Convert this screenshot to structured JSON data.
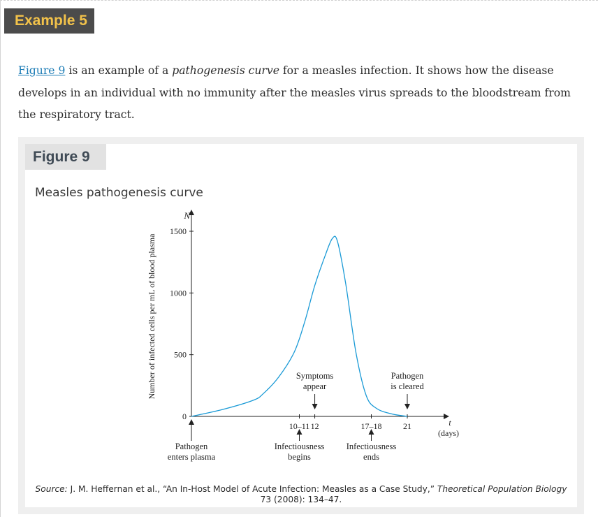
{
  "example_label": "Example 5",
  "intro": {
    "link_text": "Figure 9",
    "text_1": " is an example of a ",
    "emph": "pathogenesis curve",
    "text_2": " for a measles infection. It shows how the disease develops in an individual with no immunity after the measles virus spreads to the bloodstream from the respiratory tract."
  },
  "figure": {
    "label": "Figure 9",
    "caption": "Measles pathogenesis curve",
    "source": {
      "prefix": "Source:",
      "text_1": " J. M. Heffernan et al., “An In-Host Model of Acute Infection: Measles as a Case Study,” ",
      "journal": "Theoretical Population Biology",
      "text_2": " 73 (2008): 134–47."
    }
  },
  "colors": {
    "curve": "#1a9ad6",
    "axis": "#222222",
    "tab_dark": "#4b4b4b",
    "tab_accent": "#f2c24a",
    "link": "#1a7bb5"
  },
  "chart_data": {
    "type": "line",
    "ylabel": "Number of infected cells per mL of blood plasma",
    "y_axis_letter": "N",
    "x_axis_letter": "t",
    "x_unit": "(days)",
    "ylim": [
      0,
      1500
    ],
    "y_ticks": [
      {
        "value": 0,
        "label": "0"
      },
      {
        "value": 500,
        "label": "500"
      },
      {
        "value": 1000,
        "label": "1000"
      },
      {
        "value": 1500,
        "label": "1500"
      }
    ],
    "x_ticks": [
      {
        "value": 10.5,
        "label": "10–11"
      },
      {
        "value": 12,
        "label": "12"
      },
      {
        "value": 17.5,
        "label": "17–18"
      },
      {
        "value": 21,
        "label": "21"
      }
    ],
    "points": [
      {
        "x": 0,
        "y": 0
      },
      {
        "x": 3,
        "y": 55
      },
      {
        "x": 6,
        "y": 130
      },
      {
        "x": 7,
        "y": 185
      },
      {
        "x": 8.5,
        "y": 320
      },
      {
        "x": 10,
        "y": 520
      },
      {
        "x": 11,
        "y": 760
      },
      {
        "x": 12,
        "y": 1060
      },
      {
        "x": 13,
        "y": 1300
      },
      {
        "x": 13.7,
        "y": 1440
      },
      {
        "x": 14.2,
        "y": 1420
      },
      {
        "x": 15,
        "y": 1080
      },
      {
        "x": 16,
        "y": 520
      },
      {
        "x": 17,
        "y": 170
      },
      {
        "x": 18,
        "y": 65
      },
      {
        "x": 19.5,
        "y": 20
      },
      {
        "x": 21,
        "y": 0
      }
    ],
    "annotations": [
      {
        "lines": [
          "Symptoms",
          "appear"
        ],
        "x": 12,
        "position": "above"
      },
      {
        "lines": [
          "Pathogen",
          "is cleared"
        ],
        "x": 21,
        "position": "above"
      },
      {
        "lines": [
          "Pathogen",
          "enters plasma"
        ],
        "x": 0,
        "position": "below"
      },
      {
        "lines": [
          "Infectiousness",
          "begins"
        ],
        "x": 10.5,
        "position": "below"
      },
      {
        "lines": [
          "Infectiousness",
          "ends"
        ],
        "x": 17.5,
        "position": "below"
      }
    ]
  }
}
